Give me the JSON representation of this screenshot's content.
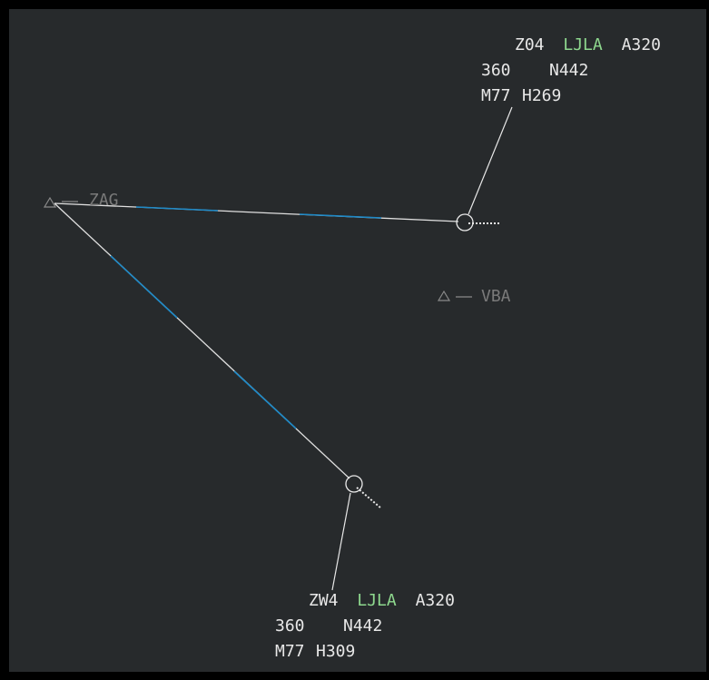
{
  "waypoints": [
    {
      "name": "ZAG"
    },
    {
      "name": "VBA"
    }
  ],
  "aircraft": [
    {
      "callsign": "Z04",
      "destination": "LJLA",
      "aircraft_type": "A320",
      "flight_level": "360",
      "speed": "N442",
      "mach": "M77",
      "heading": "H269"
    },
    {
      "callsign": "ZW4",
      "destination": "LJLA",
      "aircraft_type": "A320",
      "flight_level": "360",
      "speed": "N442",
      "mach": "M77",
      "heading": "H309"
    }
  ]
}
